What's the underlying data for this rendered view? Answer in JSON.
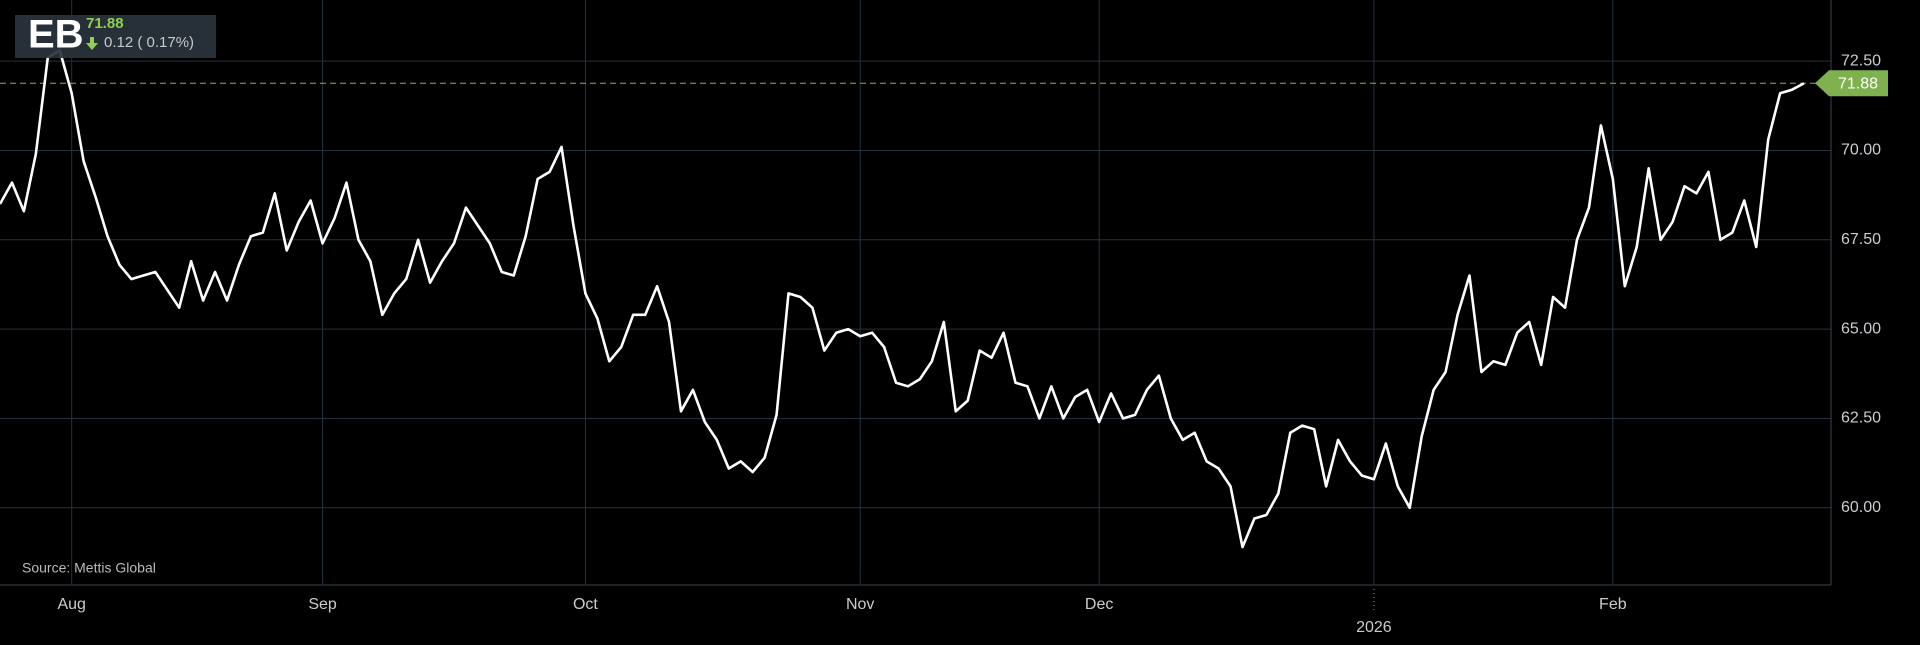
{
  "chart_data": {
    "type": "line",
    "change_label": "0.12 ( 0.17%)",
    "source": "Source: Mettis Global",
    "categories": [
      null,
      null,
      null,
      null,
      null,
      null,
      "Aug",
      null,
      null,
      null,
      null,
      null,
      null,
      null,
      null,
      null,
      null,
      null,
      null,
      null,
      null,
      null,
      null,
      null,
      null,
      null,
      null,
      "Sep",
      null,
      null,
      null,
      null,
      null,
      null,
      null,
      null,
      null,
      null,
      null,
      null,
      null,
      null,
      null,
      null,
      null,
      null,
      null,
      null,
      null,
      "Oct",
      null,
      null,
      null,
      null,
      null,
      null,
      null,
      null,
      null,
      null,
      null,
      null,
      null,
      null,
      null,
      null,
      null,
      null,
      null,
      null,
      null,
      null,
      "Nov",
      null,
      null,
      null,
      null,
      null,
      null,
      null,
      null,
      null,
      null,
      null,
      null,
      null,
      null,
      null,
      null,
      null,
      null,
      null,
      "Dec",
      null,
      null,
      null,
      null,
      null,
      null,
      null,
      null,
      null,
      null,
      null,
      null,
      null,
      null,
      null,
      null,
      null,
      null,
      null,
      null,
      null,
      null,
      "2026",
      null,
      null,
      null,
      null,
      null,
      null,
      null,
      null,
      null,
      null,
      null,
      null,
      null,
      null,
      null,
      null,
      null,
      null,
      null,
      "Feb",
      null,
      null,
      null,
      null,
      null,
      null,
      null,
      null,
      null,
      null,
      null,
      null,
      null,
      null,
      null,
      null
    ],
    "series": [
      {
        "name": "EB",
        "color": "#ffffff",
        "values": [
          68.5,
          69.1,
          68.3,
          69.9,
          72.6,
          72.8,
          71.6,
          69.7,
          68.7,
          67.6,
          66.8,
          66.4,
          66.5,
          66.6,
          66.1,
          65.6,
          66.9,
          65.8,
          66.6,
          65.8,
          66.8,
          67.6,
          67.7,
          68.8,
          67.2,
          68.0,
          68.6,
          67.4,
          68.1,
          69.1,
          67.5,
          66.9,
          65.4,
          66.0,
          66.4,
          67.5,
          66.3,
          66.9,
          67.4,
          68.4,
          67.9,
          67.4,
          66.6,
          66.5,
          67.6,
          69.2,
          69.4,
          70.1,
          67.9,
          66.0,
          65.3,
          64.1,
          64.5,
          65.4,
          65.4,
          66.2,
          65.2,
          62.7,
          63.3,
          62.4,
          61.9,
          61.1,
          61.3,
          61.0,
          61.4,
          62.6,
          66.0,
          65.9,
          65.6,
          64.4,
          64.9,
          65.0,
          64.8,
          64.9,
          64.5,
          63.5,
          63.4,
          63.6,
          64.1,
          65.2,
          62.7,
          63.0,
          64.4,
          64.2,
          64.9,
          63.5,
          63.4,
          62.5,
          63.4,
          62.5,
          63.1,
          63.3,
          62.4,
          63.2,
          62.5,
          62.6,
          63.3,
          63.7,
          62.5,
          61.9,
          62.1,
          61.3,
          61.1,
          60.6,
          58.9,
          59.7,
          59.8,
          60.4,
          62.1,
          62.3,
          62.2,
          60.6,
          61.9,
          61.3,
          60.9,
          60.8,
          61.8,
          60.6,
          60.0,
          62.0,
          63.3,
          63.8,
          65.4,
          66.5,
          63.8,
          64.1,
          64.0,
          64.9,
          65.2,
          64.0,
          65.9,
          65.6,
          67.5,
          68.4,
          70.7,
          69.2,
          66.2,
          67.3,
          69.5,
          67.5,
          68.0,
          69.0,
          68.8,
          69.4,
          67.5,
          67.7,
          68.6,
          67.3,
          70.3,
          71.6,
          71.7,
          71.88
        ]
      }
    ],
    "last_color": "#7fb24f",
    "ylim": [
      57.84,
      74.21
    ],
    "yticks": [
      {
        "value": 60,
        "label": "60.00"
      },
      {
        "value": 62.5,
        "label": "62.50"
      },
      {
        "value": 65,
        "label": "65.00"
      },
      {
        "value": 67.5,
        "label": "67.50"
      },
      {
        "value": 70,
        "label": "70.00"
      },
      {
        "value": 72.5,
        "label": "72.50"
      }
    ],
    "grid": true
  }
}
